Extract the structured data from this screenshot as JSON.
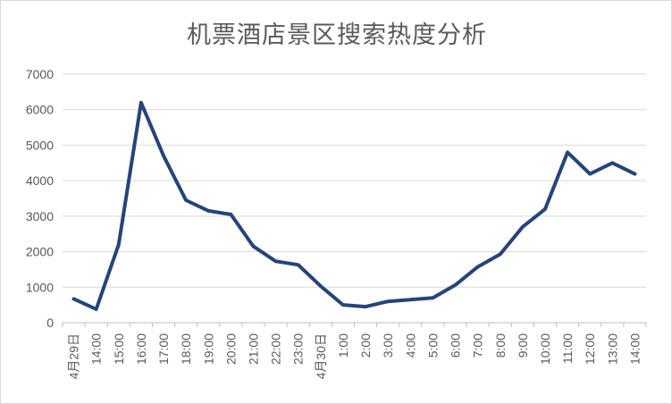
{
  "chart_data": {
    "type": "line",
    "title": "机票酒店景区搜索热度分析",
    "xlabel": "",
    "ylabel": "",
    "ylim": [
      0,
      7000
    ],
    "yticks": [
      "0",
      "1000",
      "2000",
      "3000",
      "4000",
      "5000",
      "6000",
      "7000"
    ],
    "categories": [
      "4月29日",
      "14:00",
      "15:00",
      "16:00",
      "17:00",
      "18:00",
      "19:00",
      "20:00",
      "21:00",
      "22:00",
      "23:00",
      "4月30日",
      "1:00",
      "2:00",
      "3:00",
      "4:00",
      "5:00",
      "6:00",
      "7:00",
      "8:00",
      "9:00",
      "10:00",
      "11:00",
      "12:00",
      "13:00",
      "14:00"
    ],
    "series": [
      {
        "values": [
          670,
          380,
          2200,
          6200,
          4700,
          3450,
          3150,
          3050,
          2150,
          1730,
          1630,
          1030,
          500,
          450,
          600,
          650,
          700,
          1060,
          1570,
          1930,
          2700,
          3200,
          4800,
          4190,
          4500,
          4190
        ],
        "color": "#264478"
      }
    ],
    "grid": true,
    "legend": "none"
  }
}
